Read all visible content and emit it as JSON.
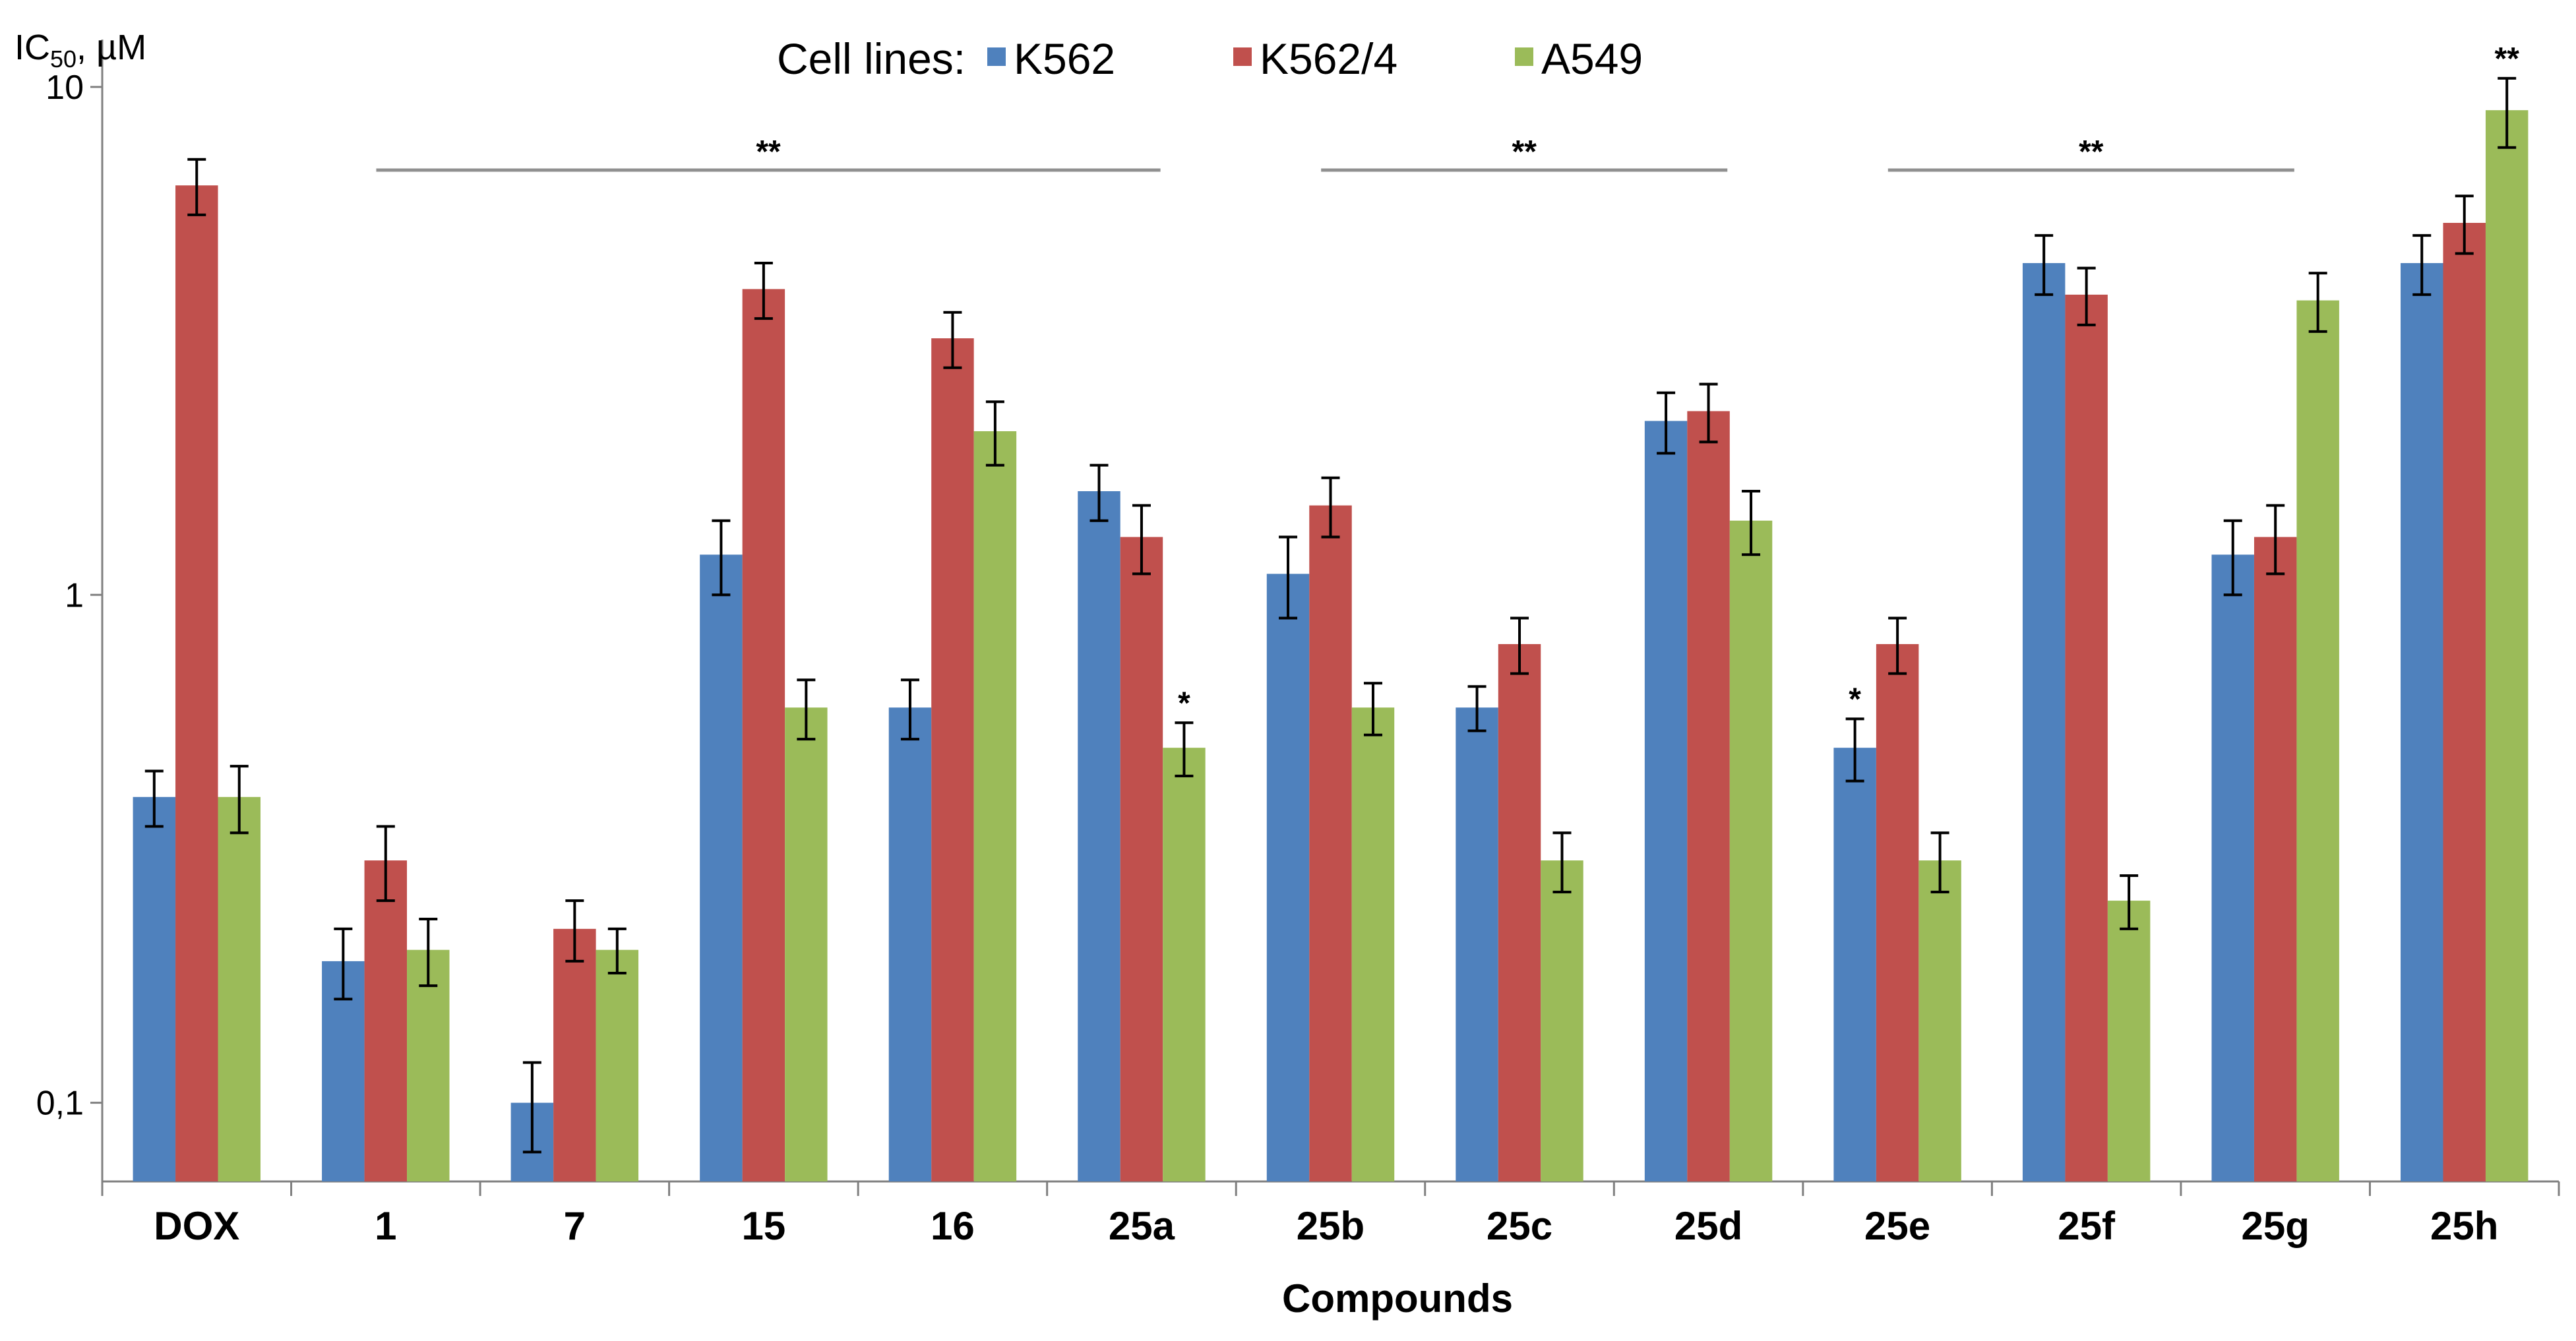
{
  "chart_data": {
    "type": "bar",
    "title": "",
    "xlabel": "Compounds",
    "ylabel": {
      "main": "IC",
      "sub": "50",
      "unit": ", µM"
    },
    "yscale": "log",
    "ylim": [
      0.07,
      11
    ],
    "yticks": [
      {
        "value": 0.1,
        "label": "0,1"
      },
      {
        "value": 1,
        "label": "1"
      },
      {
        "value": 10,
        "label": "10"
      }
    ],
    "categories": [
      "DOX",
      "1",
      "7",
      "15",
      "16",
      "25a",
      "25b",
      "25c",
      "25d",
      "25e",
      "25f",
      "25g",
      "25h"
    ],
    "legend": {
      "title": "Cell lines:",
      "position": "top"
    },
    "series": [
      {
        "name": "K562",
        "color": "#4F81BD",
        "values": [
          0.4,
          0.19,
          0.1,
          1.2,
          0.6,
          1.6,
          1.1,
          0.6,
          2.2,
          0.5,
          4.5,
          1.2,
          4.5
        ],
        "errors": [
          0.05,
          0.03,
          0.02,
          0.2,
          0.08,
          0.2,
          0.2,
          0.06,
          0.3,
          0.07,
          0.6,
          0.2,
          0.6
        ]
      },
      {
        "name": "K562/4",
        "color": "#C0504D",
        "values": [
          6.4,
          0.3,
          0.22,
          4.0,
          3.2,
          1.3,
          1.5,
          0.8,
          2.3,
          0.8,
          3.9,
          1.3,
          5.4
        ],
        "errors": [
          0.8,
          0.05,
          0.03,
          0.5,
          0.4,
          0.2,
          0.2,
          0.1,
          0.3,
          0.1,
          0.5,
          0.2,
          0.7
        ]
      },
      {
        "name": "A549",
        "color": "#9BBB59",
        "values": [
          0.4,
          0.2,
          0.2,
          0.6,
          2.1,
          0.5,
          0.6,
          0.3,
          1.4,
          0.3,
          0.25,
          3.8,
          9.0
        ],
        "errors": [
          0.06,
          0.03,
          0.02,
          0.08,
          0.3,
          0.06,
          0.07,
          0.04,
          0.2,
          0.04,
          0.03,
          0.5,
          1.4
        ]
      }
    ],
    "significance_bars": [
      {
        "label": "**",
        "from": "1",
        "to": "25a"
      },
      {
        "label": "**",
        "from": "25b",
        "to": "25d"
      },
      {
        "label": "**",
        "from": "25e",
        "to": "25g"
      }
    ],
    "bar_annotations": [
      {
        "category": "25a",
        "series": "A549",
        "label": "*"
      },
      {
        "category": "25e",
        "series": "K562",
        "label": "*"
      },
      {
        "category": "25h",
        "series": "A549",
        "label": "**"
      }
    ]
  }
}
